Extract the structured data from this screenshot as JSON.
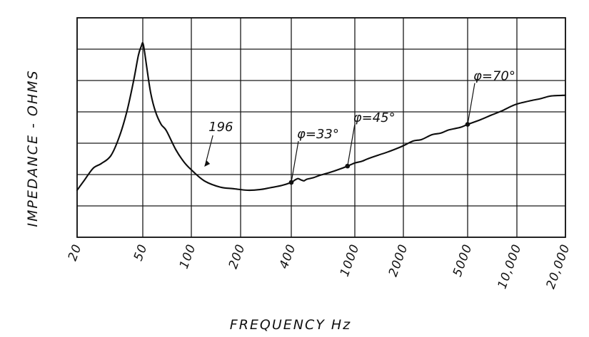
{
  "chart_data": {
    "type": "line",
    "title": "",
    "xlabel": "FREQUENCY Hz",
    "ylabel": "IMPEDANCE - OHMS",
    "x_scale": "log",
    "xlim": [
      20,
      20000
    ],
    "ylim": [
      0,
      7
    ],
    "grid": true,
    "x_ticks": [
      {
        "value": 20,
        "label": "20"
      },
      {
        "value": 50,
        "label": "50"
      },
      {
        "value": 100,
        "label": "100"
      },
      {
        "value": 200,
        "label": "200"
      },
      {
        "value": 400,
        "label": "400"
      },
      {
        "value": 1000,
        "label": "1000"
      },
      {
        "value": 2000,
        "label": "2000"
      },
      {
        "value": 5000,
        "label": "5000"
      },
      {
        "value": 10000,
        "label": "10,000"
      },
      {
        "value": 20000,
        "label": "20,000"
      }
    ],
    "series": [
      {
        "name": "196",
        "x": [
          20,
          22,
          25,
          28,
          32,
          36,
          40,
          44,
          47,
          49,
          50,
          51,
          53,
          56,
          60,
          65,
          70,
          80,
          90,
          100,
          120,
          150,
          180,
          220,
          260,
          300,
          350,
          400,
          420,
          440,
          460,
          480,
          500,
          550,
          600,
          700,
          800,
          900,
          1000,
          1100,
          1200,
          1400,
          1600,
          1800,
          2000,
          2300,
          2600,
          3000,
          3400,
          3800,
          4200,
          4600,
          5000,
          6000,
          7000,
          8000,
          9000,
          10000,
          12000,
          14000,
          16000,
          18000,
          20000
        ],
        "y": [
          1.5,
          1.8,
          2.2,
          2.35,
          2.6,
          3.2,
          4.0,
          5.0,
          5.8,
          6.1,
          6.2,
          6.0,
          5.4,
          4.6,
          4.0,
          3.6,
          3.4,
          2.8,
          2.4,
          2.15,
          1.8,
          1.6,
          1.55,
          1.5,
          1.52,
          1.58,
          1.65,
          1.75,
          1.82,
          1.87,
          1.83,
          1.8,
          1.85,
          1.9,
          1.97,
          2.07,
          2.17,
          2.27,
          2.37,
          2.42,
          2.5,
          2.62,
          2.72,
          2.82,
          2.92,
          3.07,
          3.12,
          3.27,
          3.32,
          3.42,
          3.47,
          3.52,
          3.6,
          3.75,
          3.9,
          4.02,
          4.15,
          4.25,
          4.35,
          4.42,
          4.5,
          4.52,
          4.53
        ]
      }
    ],
    "annotations": [
      {
        "text": "196",
        "x": 120,
        "y": 2.25,
        "type": "callout-arrow"
      },
      {
        "text": "φ=33°",
        "x": 400,
        "y": 1.75,
        "type": "callout-point"
      },
      {
        "text": "φ=45°",
        "x": 900,
        "y": 2.27,
        "type": "callout-point"
      },
      {
        "text": "φ=70°",
        "x": 5000,
        "y": 3.6,
        "type": "callout-point"
      }
    ]
  }
}
